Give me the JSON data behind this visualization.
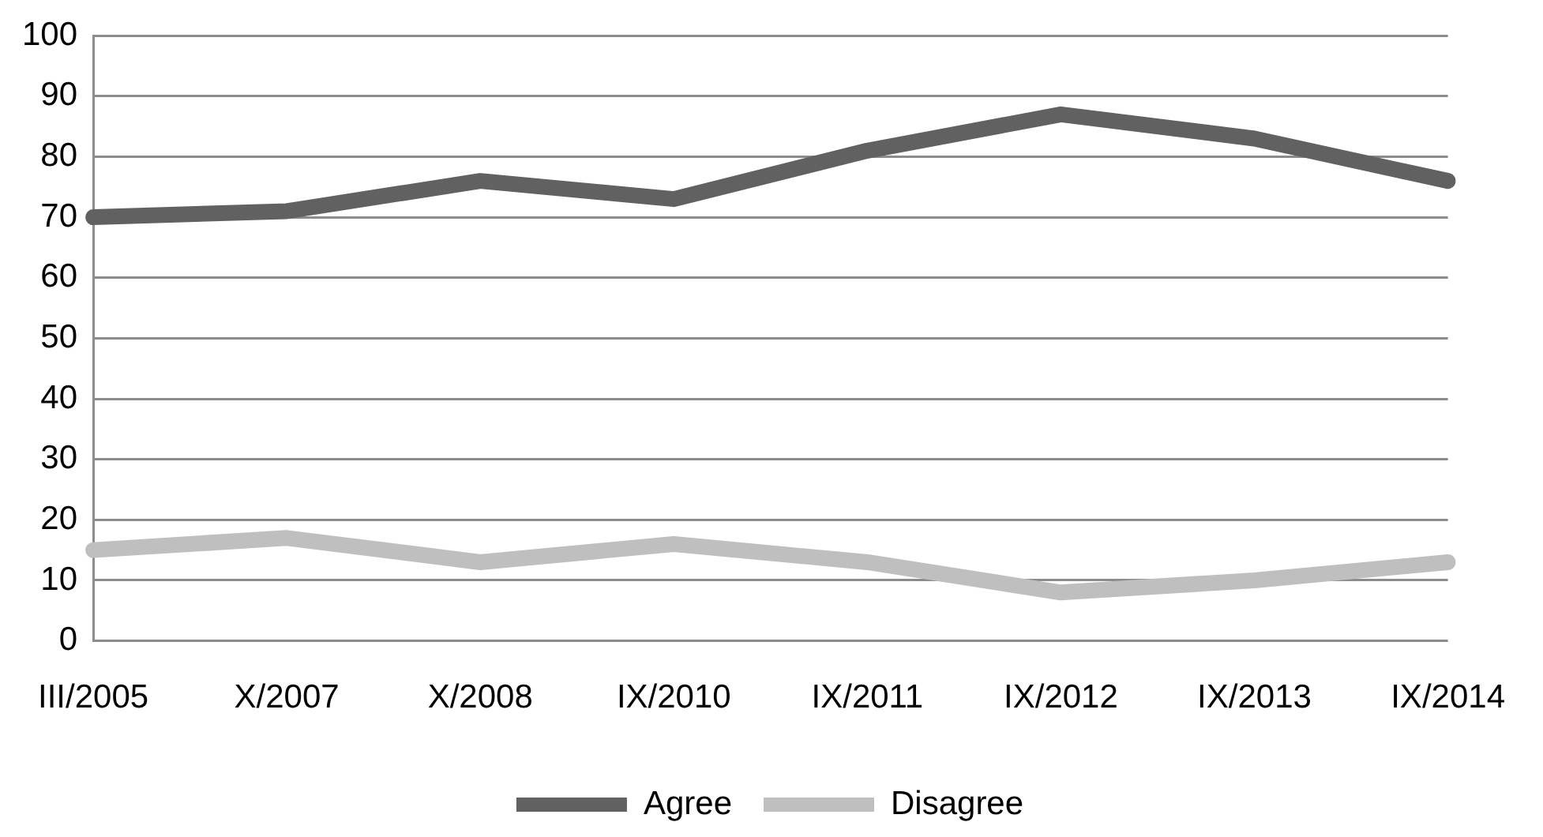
{
  "chart_data": {
    "type": "line",
    "categories": [
      "III/2005",
      "X/2007",
      "X/2008",
      "IX/2010",
      "IX/2011",
      "IX/2012",
      "IX/2013",
      "IX/2014"
    ],
    "series": [
      {
        "name": "Agree",
        "color": "#616161",
        "values": [
          70,
          71,
          76,
          73,
          81,
          87,
          83,
          76
        ]
      },
      {
        "name": "Disagree",
        "color": "#bfbfbf",
        "values": [
          15,
          17,
          13,
          16,
          13,
          8,
          10,
          13
        ]
      }
    ],
    "ylim": [
      0,
      100
    ],
    "yticks": [
      0,
      10,
      20,
      30,
      40,
      50,
      60,
      70,
      80,
      90,
      100
    ],
    "grid": "y",
    "legend": "bottom",
    "marker": "none",
    "line_style": "solid"
  }
}
